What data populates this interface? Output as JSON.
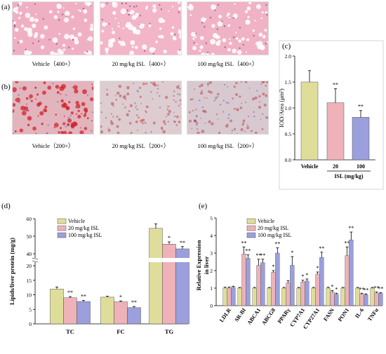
{
  "panels": {
    "a": {
      "label": "(a)",
      "captions": [
        "Vehicle（400×）",
        "20 mg/kg ISL（400×）",
        "100 mg/kg ISL（400×）"
      ]
    },
    "b": {
      "label": "(b)",
      "captions": [
        "Vehicle（200×）",
        "20 mg/kg ISL（200×）",
        "100 mg/kg ISL（200×）"
      ]
    },
    "c": {
      "label": "(c)"
    },
    "d": {
      "label": "(d)"
    },
    "e": {
      "label": "(e)"
    }
  },
  "colors": {
    "vehicle": "#dede9a",
    "isl20": "#eeb2b8",
    "isl100": "#9b9fdc",
    "he_bg": "#f0b4c6",
    "oro_bg": "#dcc4c4"
  },
  "chart_data": [
    {
      "id": "c",
      "type": "bar",
      "ylabel": "IOD/Area (μm²)",
      "ylim": [
        0,
        2.0
      ],
      "yticks": [
        0.0,
        0.5,
        1.0,
        1.5,
        2.0
      ],
      "categories": [
        "Vehicle",
        "20",
        "100"
      ],
      "group_label": "ISL (mg/kg)",
      "values": [
        1.5,
        1.1,
        0.82
      ],
      "errors": [
        0.22,
        0.27,
        0.13
      ],
      "significance": [
        "",
        "**",
        "**"
      ]
    },
    {
      "id": "d",
      "type": "bar",
      "ylabel": "Lipids/liver protein (mg/g)",
      "ylim": [
        0,
        60
      ],
      "yticks": [
        0,
        5,
        10,
        15,
        20,
        40,
        50,
        60
      ],
      "axis_break": [
        21,
        38
      ],
      "categories": [
        "TC",
        "FC",
        "TG"
      ],
      "legend": [
        "Vehicle",
        "20 mg/kg ISL",
        "100 mg/kg ISL"
      ],
      "series": [
        {
          "name": "Vehicle",
          "values": [
            12.0,
            9.2,
            54.5
          ],
          "errors": [
            0.7,
            0.3,
            2.6
          ],
          "significance": [
            "",
            "",
            ""
          ]
        },
        {
          "name": "20 mg/kg ISL",
          "values": [
            9.0,
            7.6,
            45.5
          ],
          "errors": [
            0.4,
            0.3,
            1.3
          ],
          "significance": [
            "**",
            "*",
            "*"
          ]
        },
        {
          "name": "100 mg/kg ISL",
          "values": [
            7.7,
            5.6,
            42.8
          ],
          "errors": [
            0.4,
            0.4,
            1.3
          ],
          "significance": [
            "**",
            "**",
            "**"
          ]
        }
      ]
    },
    {
      "id": "e",
      "type": "bar",
      "ylabel": "Relative Expression in liver",
      "ylim": [
        0,
        5
      ],
      "yticks": [
        0,
        1,
        2,
        3,
        4,
        5
      ],
      "categories": [
        "LDLR",
        "SR-BI",
        "ABCA1",
        "ABCG8",
        "PPARγ",
        "CYP7A1",
        "CYP27A1",
        "FASN",
        "PON1",
        "IL-6",
        "TNFα"
      ],
      "legend": [
        "Vehicle",
        "20 mg/kg ISL",
        "100 mg/kg ISL"
      ],
      "series": [
        {
          "name": "Vehicle",
          "values": [
            1,
            1,
            1,
            1,
            1,
            1,
            1,
            1,
            1,
            1,
            1
          ],
          "errors": [
            0.05,
            0.04,
            0.04,
            0.04,
            0.04,
            0.04,
            0.04,
            0.05,
            0.04,
            0.04,
            0.04
          ],
          "significance": [
            "",
            "",
            "",
            "",
            "",
            "",
            "",
            "",
            "",
            "",
            ""
          ]
        },
        {
          "name": "20 mg/kg ISL",
          "values": [
            1.0,
            2.95,
            2.3,
            1.9,
            1.3,
            1.35,
            1.8,
            0.78,
            2.85,
            0.65,
            0.72
          ],
          "errors": [
            0.06,
            0.4,
            0.35,
            0.1,
            0.12,
            0.1,
            0.12,
            0.08,
            0.5,
            0.06,
            0.06
          ],
          "significance": [
            "",
            "**",
            "**",
            "*",
            "",
            "*",
            "*",
            "*",
            "**",
            "**",
            "**"
          ]
        },
        {
          "name": "100 mg/kg ISL",
          "values": [
            1.05,
            2.7,
            2.45,
            3.0,
            2.3,
            1.4,
            2.75,
            0.65,
            3.75,
            0.62,
            0.7
          ],
          "errors": [
            0.06,
            0.2,
            0.2,
            0.3,
            0.5,
            0.12,
            0.3,
            0.06,
            0.45,
            0.05,
            0.05
          ],
          "significance": [
            "",
            "**",
            "**",
            "**",
            "*",
            "*",
            "**",
            "*",
            "**",
            "**",
            "**"
          ]
        }
      ]
    }
  ]
}
